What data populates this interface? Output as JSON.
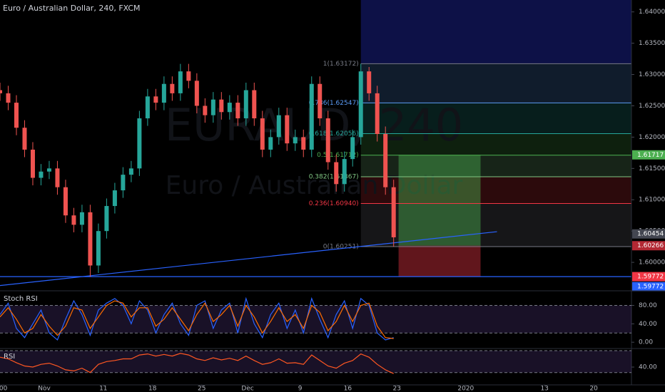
{
  "chart_data": {
    "type": "candlestick",
    "title": "Euro / Australian Dollar, 240, FXCM",
    "watermark": [
      "EURAUD, 240",
      "Euro / Australian Dollar"
    ],
    "up_color": "#26a69a",
    "down_color": "#ef5350",
    "candle_step": 5,
    "candles": [
      [
        1.6275,
        1.6287,
        1.6258,
        1.627
      ],
      [
        1.627,
        1.6282,
        1.6243,
        1.6255
      ],
      [
        1.6255,
        1.6267,
        1.6203,
        1.6215
      ],
      [
        1.6215,
        1.6227,
        1.6168,
        1.618
      ],
      [
        1.618,
        1.6192,
        1.6123,
        1.6135
      ],
      [
        1.6135,
        1.6157,
        1.6123,
        1.6145
      ],
      [
        1.6145,
        1.6162,
        1.6133,
        1.615
      ],
      [
        1.615,
        1.6162,
        1.6108,
        1.612
      ],
      [
        1.612,
        1.6132,
        1.6063,
        1.6075
      ],
      [
        1.6075,
        1.6087,
        1.6048,
        1.606
      ],
      [
        1.606,
        1.6092,
        1.6048,
        1.608
      ],
      [
        1.608,
        1.6092,
        1.5977,
        1.5995
      ],
      [
        1.5995,
        1.6062,
        1.5983,
        1.605
      ],
      [
        1.605,
        1.6102,
        1.6038,
        1.609
      ],
      [
        1.609,
        1.6127,
        1.6078,
        1.6115
      ],
      [
        1.6115,
        1.6152,
        1.6103,
        1.614
      ],
      [
        1.614,
        1.6162,
        1.6128,
        1.615
      ],
      [
        1.615,
        1.6242,
        1.6138,
        1.623
      ],
      [
        1.623,
        1.6277,
        1.6218,
        1.6265
      ],
      [
        1.6265,
        1.6277,
        1.6243,
        1.6255
      ],
      [
        1.6255,
        1.6297,
        1.6243,
        1.6285
      ],
      [
        1.6285,
        1.6297,
        1.6258,
        1.627
      ],
      [
        1.627,
        1.6317,
        1.6258,
        1.6305
      ],
      [
        1.6305,
        1.6317,
        1.6278,
        1.629
      ],
      [
        1.629,
        1.6302,
        1.6238,
        1.625
      ],
      [
        1.625,
        1.6262,
        1.6223,
        1.6235
      ],
      [
        1.6235,
        1.6272,
        1.6223,
        1.626
      ],
      [
        1.626,
        1.6272,
        1.6228,
        1.624
      ],
      [
        1.624,
        1.6267,
        1.6228,
        1.6255
      ],
      [
        1.6255,
        1.6267,
        1.6218,
        1.623
      ],
      [
        1.623,
        1.6287,
        1.6218,
        1.6275
      ],
      [
        1.6275,
        1.6287,
        1.6218,
        1.623
      ],
      [
        1.623,
        1.6242,
        1.6168,
        1.618
      ],
      [
        1.618,
        1.6212,
        1.6168,
        1.62
      ],
      [
        1.62,
        1.6247,
        1.6188,
        1.6235
      ],
      [
        1.6235,
        1.6247,
        1.6178,
        1.619
      ],
      [
        1.619,
        1.6212,
        1.6178,
        1.62
      ],
      [
        1.62,
        1.6212,
        1.6168,
        1.618
      ],
      [
        1.618,
        1.6297,
        1.6168,
        1.6285
      ],
      [
        1.6285,
        1.6297,
        1.6218,
        1.623
      ],
      [
        1.623,
        1.6242,
        1.6148,
        1.616
      ],
      [
        1.616,
        1.6172,
        1.6113,
        1.6125
      ],
      [
        1.6125,
        1.6177,
        1.6113,
        1.6165
      ],
      [
        1.6165,
        1.6212,
        1.6153,
        1.62
      ],
      [
        1.62,
        1.63172,
        1.6188,
        1.6305
      ],
      [
        1.6305,
        1.6312,
        1.6258,
        1.627
      ],
      [
        1.627,
        1.6282,
        1.6193,
        1.6205
      ],
      [
        1.6205,
        1.6217,
        1.6108,
        1.612
      ],
      [
        1.612,
        1.6132,
        1.60251,
        1.604
      ]
    ],
    "xlim": [
      0,
      385
    ],
    "xticks": [
      {
        "value": 2,
        "label": "00"
      },
      {
        "value": 27,
        "label": "Nov"
      },
      {
        "value": 63,
        "label": "11"
      },
      {
        "value": 93,
        "label": "18"
      },
      {
        "value": 123,
        "label": "25"
      },
      {
        "value": 151,
        "label": "Dec"
      },
      {
        "value": 183,
        "label": "9"
      },
      {
        "value": 212,
        "label": "16"
      },
      {
        "value": 242,
        "label": "23"
      },
      {
        "value": 284,
        "label": "2020"
      },
      {
        "value": 332,
        "label": "13"
      },
      {
        "value": 362,
        "label": "20"
      }
    ],
    "ylim": [
      1.5958,
      1.6419
    ],
    "yticks": [
      {
        "value": 1.6,
        "label": "1.60000"
      },
      {
        "value": 1.605,
        "label": "1.60500"
      },
      {
        "value": 1.61,
        "label": "1.61000"
      },
      {
        "value": 1.615,
        "label": "1.61500"
      },
      {
        "value": 1.62,
        "label": "1.62000"
      },
      {
        "value": 1.625,
        "label": "1.62500"
      },
      {
        "value": 1.63,
        "label": "1.63000"
      },
      {
        "value": 1.635,
        "label": "1.63500"
      },
      {
        "value": 1.64,
        "label": "1.64000"
      }
    ],
    "fib_start": 220,
    "fib": [
      {
        "label": "1(1.63172)",
        "price": 1.63172,
        "color": "#787b86"
      },
      {
        "label": "0.786(1.62547)",
        "price": 1.62547,
        "color": "#5b9cf6"
      },
      {
        "label": "0.618(1.62056)",
        "price": 1.62056,
        "color": "#26a69a"
      },
      {
        "label": "0.5(1.61712)",
        "price": 1.61712,
        "color": "#4caf50"
      },
      {
        "label": "0.382(1.61367)",
        "price": 1.61367,
        "color": "#81c784"
      },
      {
        "label": "0.236(1.60940)",
        "price": 1.6094,
        "color": "#f23645"
      },
      {
        "label": "0(1.60251)",
        "price": 1.60251,
        "color": "#787b86"
      }
    ],
    "position": {
      "left": 243,
      "right": 293,
      "target": 1.61717,
      "entry": 1.60266,
      "stop": 1.59772
    },
    "trendline": [
      [
        0,
        1.5963
      ],
      [
        303,
        1.6049
      ]
    ],
    "support": 1.59772,
    "price_tags": [
      {
        "value": 1.61717,
        "label": "1.61717",
        "color": "#4caf50"
      },
      {
        "value": 1.60454,
        "label": "1.60454",
        "color": "#434651"
      },
      {
        "value": 1.60266,
        "label": "1.60266",
        "color": "#b22833"
      },
      {
        "value": 1.59772,
        "label": "1.59772",
        "color": "#f23645"
      },
      {
        "value": 1.59772,
        "label": "1.59772",
        "color": "#2962ff"
      }
    ],
    "stoch": {
      "name": "Stoch RSI",
      "ylim": [
        -10.6,
        108.7
      ],
      "yticks": [
        {
          "value": 80,
          "label": "80.00"
        },
        {
          "value": 40,
          "label": "40.00"
        },
        {
          "value": 0,
          "label": "0.00"
        }
      ],
      "levels": [
        80,
        20
      ],
      "k": [
        60,
        85,
        30,
        10,
        40,
        70,
        20,
        5,
        50,
        90,
        60,
        15,
        70,
        85,
        95,
        80,
        40,
        90,
        70,
        20,
        60,
        85,
        40,
        15,
        80,
        90,
        30,
        70,
        85,
        20,
        95,
        40,
        10,
        60,
        85,
        30,
        70,
        20,
        95,
        50,
        10,
        60,
        90,
        30,
        95,
        80,
        20,
        5,
        10
      ],
      "d": [
        55,
        75,
        50,
        20,
        30,
        60,
        35,
        15,
        35,
        75,
        70,
        30,
        55,
        80,
        90,
        85,
        55,
        75,
        75,
        35,
        50,
        75,
        50,
        25,
        60,
        85,
        45,
        60,
        80,
        35,
        80,
        55,
        20,
        45,
        75,
        45,
        60,
        30,
        80,
        65,
        25,
        45,
        80,
        45,
        80,
        85,
        35,
        10,
        8
      ],
      "k_color": "#2962ff",
      "d_color": "#ff6d00"
    },
    "rsi": {
      "name": "RSI",
      "ylim": [
        7.5,
        71.25
      ],
      "yticks": [
        {
          "value": 40,
          "label": "40.00"
        }
      ],
      "levels": [
        70,
        30
      ],
      "color": "#ff5722",
      "values": [
        58,
        55,
        48,
        42,
        40,
        45,
        47,
        42,
        35,
        33,
        38,
        30,
        45,
        50,
        52,
        55,
        55,
        62,
        64,
        60,
        63,
        60,
        65,
        62,
        55,
        52,
        57,
        53,
        56,
        52,
        60,
        52,
        45,
        48,
        55,
        47,
        48,
        45,
        62,
        52,
        42,
        38,
        47,
        52,
        64,
        58,
        45,
        35,
        28
      ]
    }
  }
}
